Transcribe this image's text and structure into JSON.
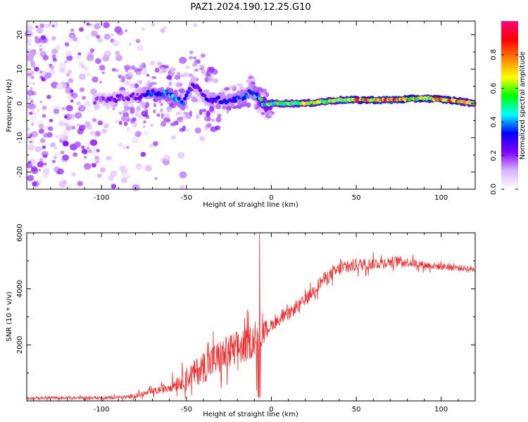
{
  "figure": {
    "title": "PAZ1.2024.190.12.25.G10"
  },
  "chart_data": [
    {
      "type": "heatmap",
      "title": "PAZ1.2024.190.12.25.G10",
      "xlabel": "Height of straight line (km)",
      "ylabel": "Frequency (Hz)",
      "xlim": [
        -144,
        120
      ],
      "ylim": [
        -25,
        24
      ],
      "xticks": [
        -100,
        -50,
        0,
        50,
        100
      ],
      "yticks": [
        20,
        10,
        0,
        -10,
        -20
      ],
      "colorbar": {
        "label": "Normalized spectral amplitude",
        "range": [
          0,
          1
        ],
        "ticks": [
          0.0,
          0.2,
          0.4,
          0.6,
          0.8
        ],
        "colormap": [
          "#ffffff",
          "#d9b3ff",
          "#8000ff",
          "#0000ff",
          "#00ffff",
          "#00ff00",
          "#ffff00",
          "#ff8000",
          "#ff0000",
          "#ff0080"
        ]
      },
      "ridge": [
        {
          "x": -144,
          "f": 0,
          "a": 0.15
        },
        {
          "x": -100,
          "f": 1,
          "a": 0.2
        },
        {
          "x": -80,
          "f": 2,
          "a": 0.22
        },
        {
          "x": -70,
          "f": 3,
          "a": 0.35
        },
        {
          "x": -60,
          "f": 3,
          "a": 0.4
        },
        {
          "x": -52,
          "f": 0,
          "a": 0.35
        },
        {
          "x": -46,
          "f": 6,
          "a": 0.25
        },
        {
          "x": -40,
          "f": 2,
          "a": 0.25
        },
        {
          "x": -35,
          "f": 1,
          "a": 0.3
        },
        {
          "x": -25,
          "f": 1,
          "a": 0.3
        },
        {
          "x": -15,
          "f": 2,
          "a": 0.35
        },
        {
          "x": -12,
          "f": 4,
          "a": 0.3
        },
        {
          "x": -5,
          "f": 0,
          "a": 0.5
        },
        {
          "x": 0,
          "f": 0,
          "a": 0.5
        },
        {
          "x": 20,
          "f": 0,
          "a": 0.6
        },
        {
          "x": 40,
          "f": 1,
          "a": 0.55
        },
        {
          "x": 50,
          "f": 1,
          "a": 0.7
        },
        {
          "x": 70,
          "f": 1,
          "a": 0.8
        },
        {
          "x": 90,
          "f": 1.5,
          "a": 0.65
        },
        {
          "x": 105,
          "f": 1,
          "a": 0.75
        },
        {
          "x": 120,
          "f": 0,
          "a": 0.6
        }
      ]
    },
    {
      "type": "line",
      "xlabel": "Height of straight line (km)",
      "ylabel": "SNR (10 * v/v)",
      "xlim": [
        -144,
        120
      ],
      "ylim": [
        0,
        6000
      ],
      "xticks": [
        -100,
        -50,
        0,
        50,
        100
      ],
      "yticks": [
        2000,
        4000,
        6000
      ],
      "color": "#f03030",
      "envelope": [
        {
          "x": -144,
          "y": 100,
          "noise": 80
        },
        {
          "x": -100,
          "y": 110,
          "noise": 80
        },
        {
          "x": -85,
          "y": 130,
          "noise": 100
        },
        {
          "x": -75,
          "y": 250,
          "noise": 150
        },
        {
          "x": -65,
          "y": 400,
          "noise": 200
        },
        {
          "x": -55,
          "y": 650,
          "noise": 400
        },
        {
          "x": -45,
          "y": 1000,
          "noise": 700
        },
        {
          "x": -35,
          "y": 1400,
          "noise": 900
        },
        {
          "x": -25,
          "y": 1700,
          "noise": 1000
        },
        {
          "x": -15,
          "y": 2000,
          "noise": 900
        },
        {
          "x": -8,
          "y": 2300,
          "noise": 800
        },
        {
          "x": 0,
          "y": 2700,
          "noise": 300
        },
        {
          "x": 10,
          "y": 3100,
          "noise": 300
        },
        {
          "x": 20,
          "y": 3600,
          "noise": 300
        },
        {
          "x": 30,
          "y": 4300,
          "noise": 350
        },
        {
          "x": 40,
          "y": 4700,
          "noise": 350
        },
        {
          "x": 50,
          "y": 4850,
          "noise": 350
        },
        {
          "x": 60,
          "y": 4900,
          "noise": 300
        },
        {
          "x": 75,
          "y": 5000,
          "noise": 250
        },
        {
          "x": 90,
          "y": 4850,
          "noise": 200
        },
        {
          "x": 120,
          "y": 4700,
          "noise": 150
        }
      ],
      "spike": {
        "x": -7,
        "y": 6000
      }
    }
  ]
}
